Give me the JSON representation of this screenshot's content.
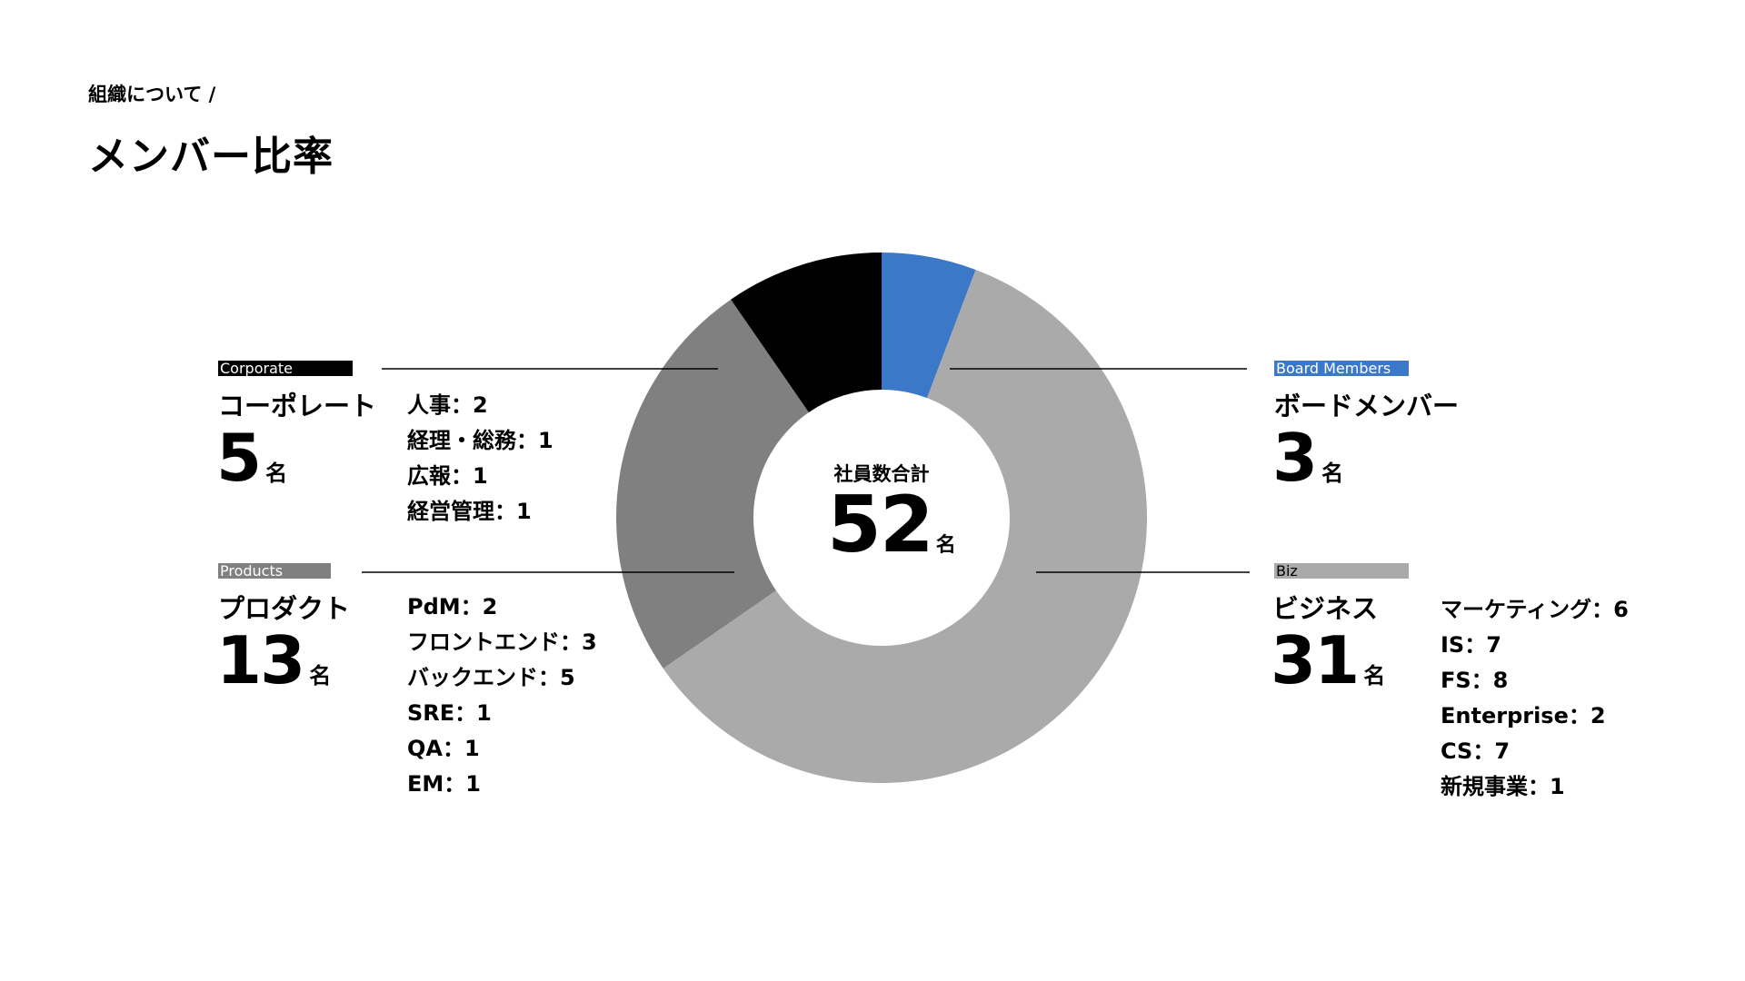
{
  "header": {
    "breadcrumb": "組織について /",
    "title": "メンバー比率"
  },
  "center": {
    "label": "社員数合計",
    "total": "52",
    "unit": "名"
  },
  "groups": {
    "corporate": {
      "tag": "Corporate",
      "name": "コーポレート",
      "count": "5",
      "unit": "名",
      "color": "#000000",
      "breakdown": [
        "人事：2",
        "経理・総務：1",
        "広報：1",
        "経営管理：1"
      ]
    },
    "products": {
      "tag": "Products",
      "name": "プロダクト",
      "count": "13",
      "unit": "名",
      "color": "#808080",
      "breakdown": [
        "PdM：2",
        "フロントエンド：3",
        "バックエンド：5",
        "SRE：1",
        "QA：1",
        "EM：1"
      ]
    },
    "board": {
      "tag": "Board Members",
      "name": "ボードメンバー",
      "count": "3",
      "unit": "名",
      "color": "#3B78C8"
    },
    "biz": {
      "tag": "Biz",
      "name": "ビジネス",
      "count": "31",
      "unit": "名",
      "color": "#AAAAAA",
      "breakdown": [
        "マーケティング：6",
        "IS：7",
        "FS：8",
        "Enterprise：2",
        "CS：7",
        "新規事業：1"
      ]
    }
  },
  "chart_data": {
    "type": "pie",
    "donut": true,
    "title": "メンバー比率",
    "total": 52,
    "categories": [
      "Board Members",
      "Biz",
      "Products",
      "Corporate"
    ],
    "values": [
      3,
      31,
      13,
      5
    ],
    "colors": [
      "#3B78C8",
      "#AAAAAA",
      "#808080",
      "#000000"
    ],
    "start_angle_deg": 0,
    "direction": "clockwise"
  }
}
